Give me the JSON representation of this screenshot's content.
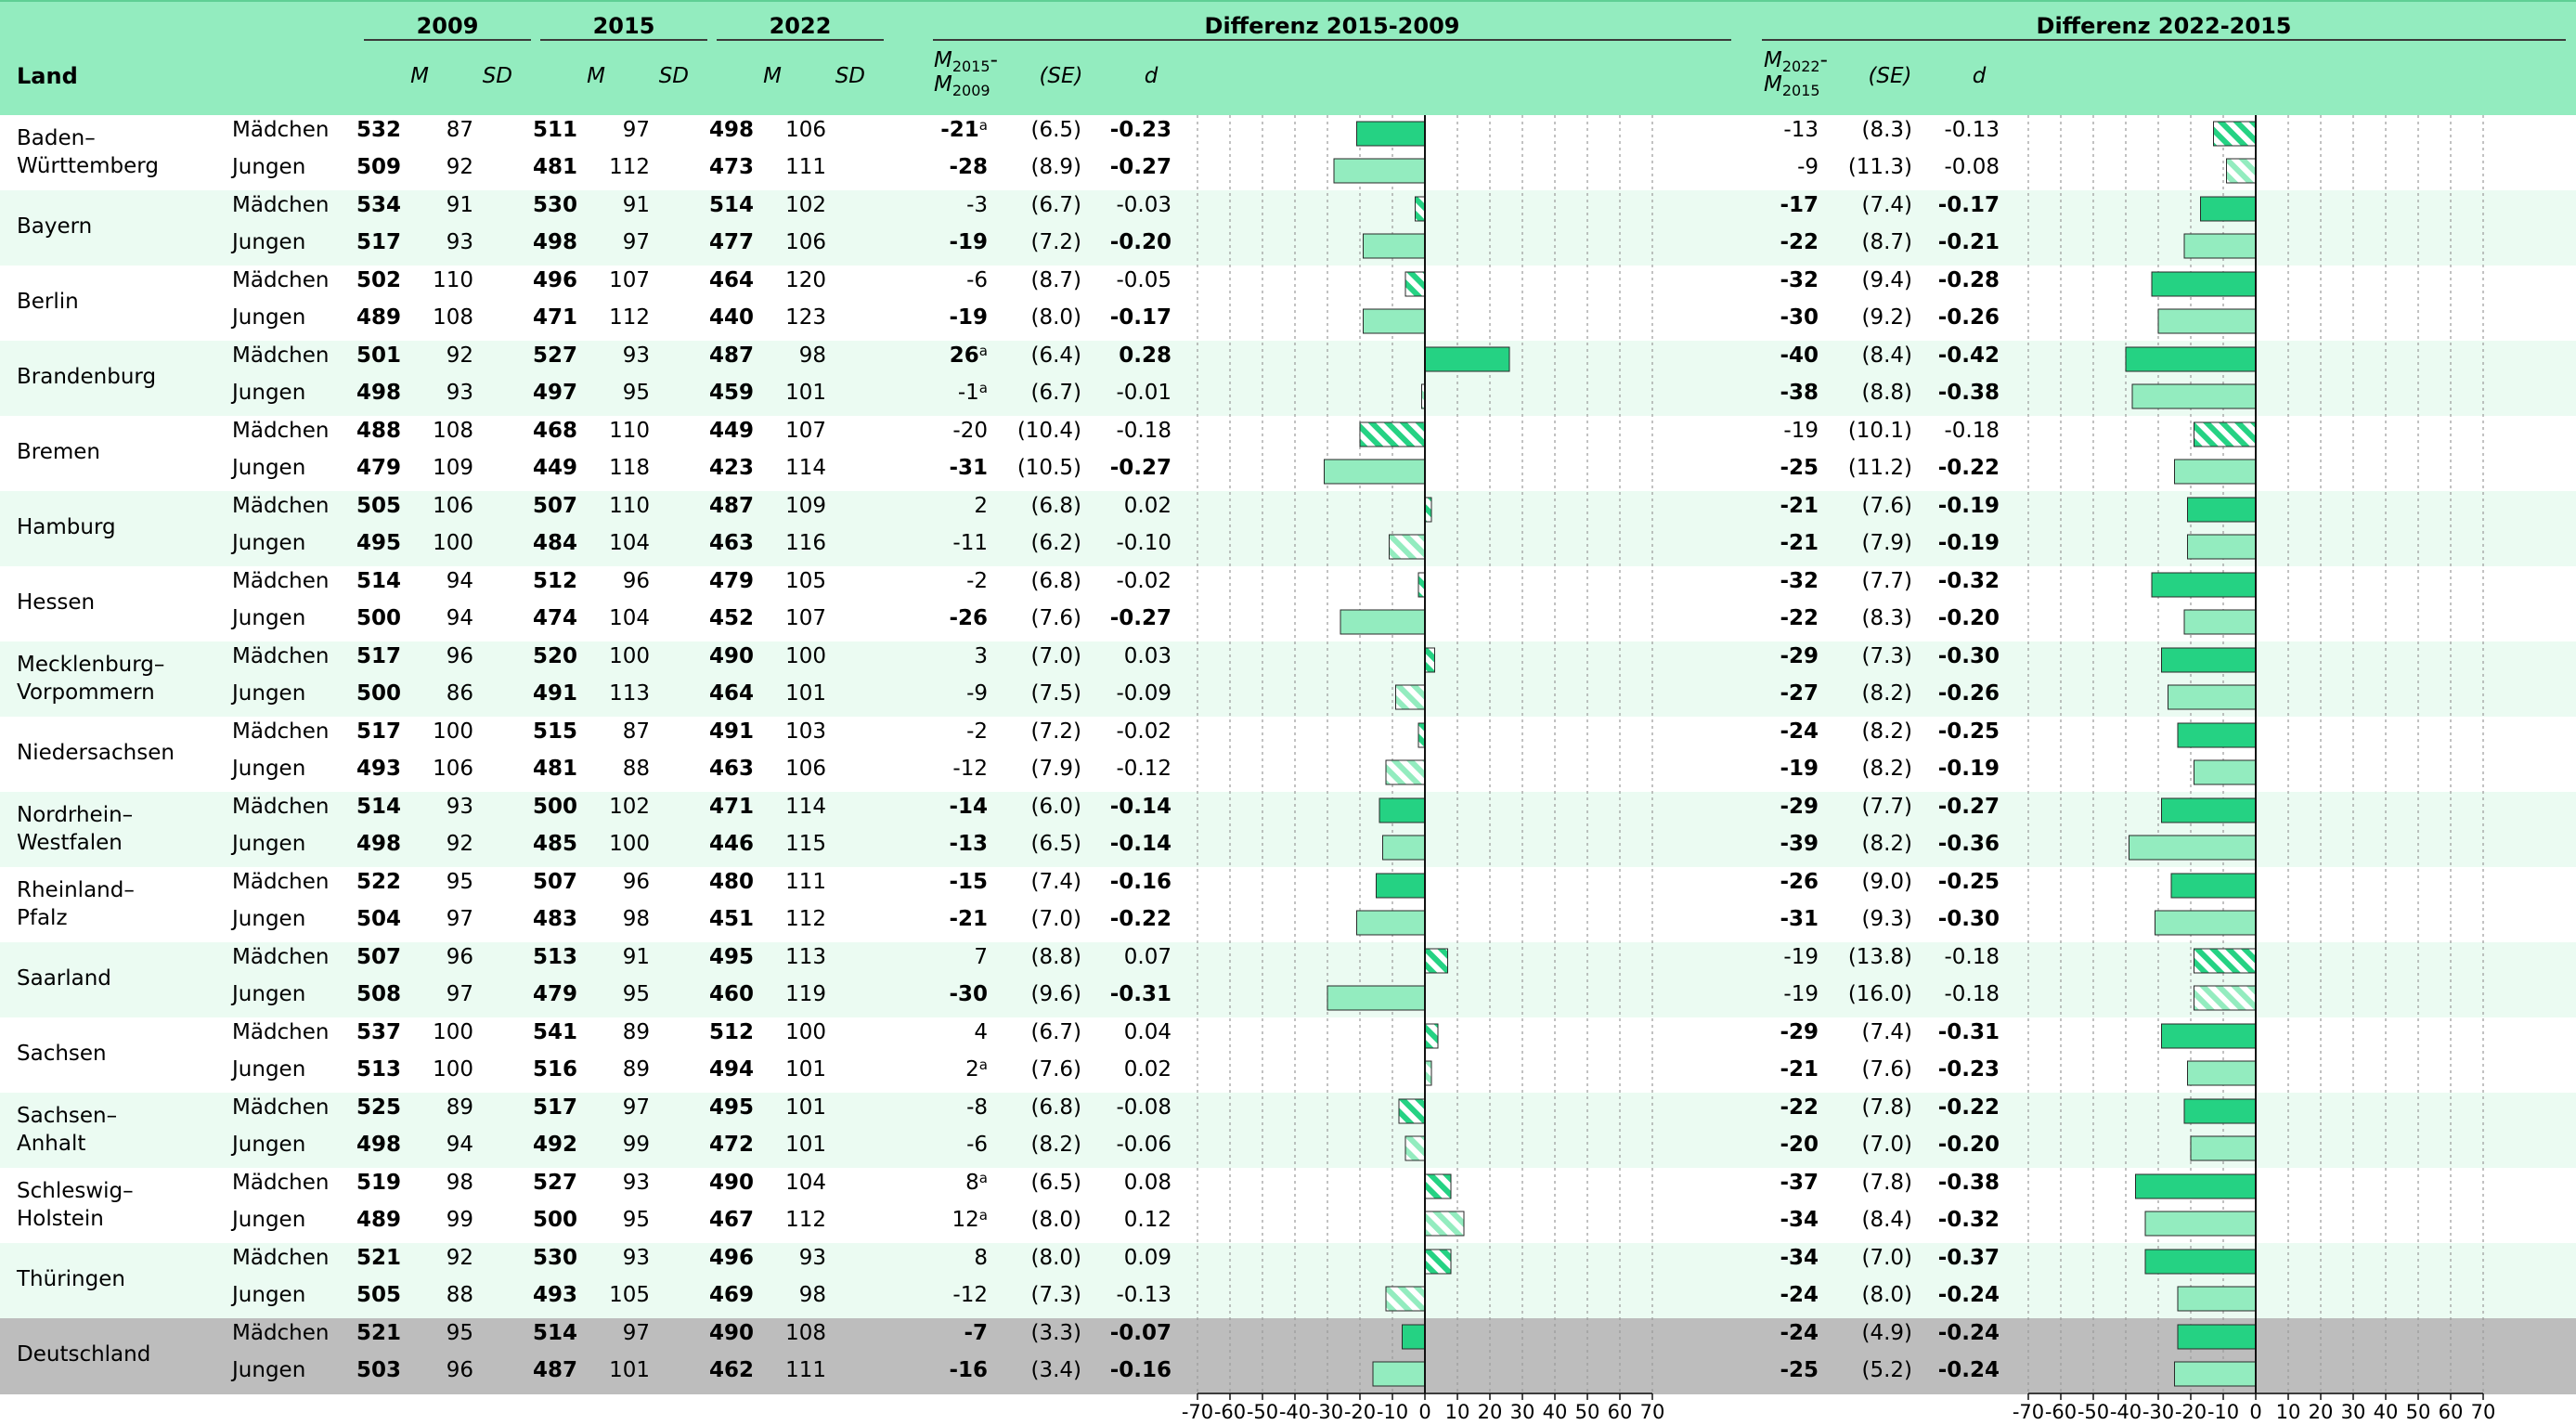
{
  "colors": {
    "header": "#93ecbf",
    "band": "#ebfbf2",
    "total": "#bdbdbd",
    "girls": "#25d283",
    "boys": "#93ecbf",
    "stroke": "#2a2a2a",
    "grid": "#9a9a9a"
  },
  "header": {
    "land": "Land",
    "years": [
      "2009",
      "2015",
      "2022"
    ],
    "m": "M",
    "sd": "SD",
    "diff1_title": "Differenz 2015-2009",
    "diff2_title": "Differenz 2022-2015",
    "diff1_m": {
      "top": "M",
      "sub1": "2015",
      "dash": "-",
      "bottom": "M",
      "sub2": "2009"
    },
    "diff2_m": {
      "top": "M",
      "sub1": "2022",
      "dash": "-",
      "bottom": "M",
      "sub2": "2015"
    },
    "se": "(SE)",
    "d": "d"
  },
  "rows": [
    {
      "land": [
        "Baden–",
        "Württemberg"
      ],
      "alt": false,
      "total": false,
      "g": [
        {
          "label": "Mädchen",
          "m09": "532",
          "sd09": "87",
          "m15": "511",
          "sd15": "97",
          "m22": "498",
          "sd22": "106",
          "d1": "-21",
          "d1a": "a",
          "se1": "(6.5)",
          "dd1": "-0.23",
          "s1": true,
          "d2": "-13",
          "d2a": "",
          "se2": "(8.3)",
          "dd2": "-0.13",
          "s2": false
        },
        {
          "label": "Jungen",
          "m09": "509",
          "sd09": "92",
          "m15": "481",
          "sd15": "112",
          "m22": "473",
          "sd22": "111",
          "d1": "-28",
          "d1a": "",
          "se1": "(8.9)",
          "dd1": "-0.27",
          "s1": true,
          "d2": "-9",
          "d2a": "",
          "se2": "(11.3)",
          "dd2": "-0.08",
          "s2": false
        }
      ]
    },
    {
      "land": [
        "Bayern"
      ],
      "alt": true,
      "total": false,
      "g": [
        {
          "label": "Mädchen",
          "m09": "534",
          "sd09": "91",
          "m15": "530",
          "sd15": "91",
          "m22": "514",
          "sd22": "102",
          "d1": "-3",
          "d1a": "",
          "se1": "(6.7)",
          "dd1": "-0.03",
          "s1": false,
          "d2": "-17",
          "d2a": "",
          "se2": "(7.4)",
          "dd2": "-0.17",
          "s2": true
        },
        {
          "label": "Jungen",
          "m09": "517",
          "sd09": "93",
          "m15": "498",
          "sd15": "97",
          "m22": "477",
          "sd22": "106",
          "d1": "-19",
          "d1a": "",
          "se1": "(7.2)",
          "dd1": "-0.20",
          "s1": true,
          "d2": "-22",
          "d2a": "",
          "se2": "(8.7)",
          "dd2": "-0.21",
          "s2": true
        }
      ]
    },
    {
      "land": [
        "Berlin"
      ],
      "alt": false,
      "total": false,
      "g": [
        {
          "label": "Mädchen",
          "m09": "502",
          "sd09": "110",
          "m15": "496",
          "sd15": "107",
          "m22": "464",
          "sd22": "120",
          "d1": "-6",
          "d1a": "",
          "se1": "(8.7)",
          "dd1": "-0.05",
          "s1": false,
          "d2": "-32",
          "d2a": "",
          "se2": "(9.4)",
          "dd2": "-0.28",
          "s2": true
        },
        {
          "label": "Jungen",
          "m09": "489",
          "sd09": "108",
          "m15": "471",
          "sd15": "112",
          "m22": "440",
          "sd22": "123",
          "d1": "-19",
          "d1a": "",
          "se1": "(8.0)",
          "dd1": "-0.17",
          "s1": true,
          "d2": "-30",
          "d2a": "",
          "se2": "(9.2)",
          "dd2": "-0.26",
          "s2": true
        }
      ]
    },
    {
      "land": [
        "Brandenburg"
      ],
      "alt": true,
      "total": false,
      "g": [
        {
          "label": "Mädchen",
          "m09": "501",
          "sd09": "92",
          "m15": "527",
          "sd15": "93",
          "m22": "487",
          "sd22": "98",
          "d1": "26",
          "d1a": "a",
          "se1": "(6.4)",
          "dd1": "0.28",
          "s1": true,
          "d2": "-40",
          "d2a": "",
          "se2": "(8.4)",
          "dd2": "-0.42",
          "s2": true
        },
        {
          "label": "Jungen",
          "m09": "498",
          "sd09": "93",
          "m15": "497",
          "sd15": "95",
          "m22": "459",
          "sd22": "101",
          "d1": "-1",
          "d1a": "a",
          "se1": "(6.7)",
          "dd1": "-0.01",
          "s1": false,
          "d2": "-38",
          "d2a": "",
          "se2": "(8.8)",
          "dd2": "-0.38",
          "s2": true
        }
      ]
    },
    {
      "land": [
        "Bremen"
      ],
      "alt": false,
      "total": false,
      "g": [
        {
          "label": "Mädchen",
          "m09": "488",
          "sd09": "108",
          "m15": "468",
          "sd15": "110",
          "m22": "449",
          "sd22": "107",
          "d1": "-20",
          "d1a": "",
          "se1": "(10.4)",
          "dd1": "-0.18",
          "s1": false,
          "d2": "-19",
          "d2a": "",
          "se2": "(10.1)",
          "dd2": "-0.18",
          "s2": false
        },
        {
          "label": "Jungen",
          "m09": "479",
          "sd09": "109",
          "m15": "449",
          "sd15": "118",
          "m22": "423",
          "sd22": "114",
          "d1": "-31",
          "d1a": "",
          "se1": "(10.5)",
          "dd1": "-0.27",
          "s1": true,
          "d2": "-25",
          "d2a": "",
          "se2": "(11.2)",
          "dd2": "-0.22",
          "s2": true
        }
      ]
    },
    {
      "land": [
        "Hamburg"
      ],
      "alt": true,
      "total": false,
      "g": [
        {
          "label": "Mädchen",
          "m09": "505",
          "sd09": "106",
          "m15": "507",
          "sd15": "110",
          "m22": "487",
          "sd22": "109",
          "d1": "2",
          "d1a": "",
          "se1": "(6.8)",
          "dd1": "0.02",
          "s1": false,
          "d2": "-21",
          "d2a": "",
          "se2": "(7.6)",
          "dd2": "-0.19",
          "s2": true
        },
        {
          "label": "Jungen",
          "m09": "495",
          "sd09": "100",
          "m15": "484",
          "sd15": "104",
          "m22": "463",
          "sd22": "116",
          "d1": "-11",
          "d1a": "",
          "se1": "(6.2)",
          "dd1": "-0.10",
          "s1": false,
          "d2": "-21",
          "d2a": "",
          "se2": "(7.9)",
          "dd2": "-0.19",
          "s2": true
        }
      ]
    },
    {
      "land": [
        "Hessen"
      ],
      "alt": false,
      "total": false,
      "g": [
        {
          "label": "Mädchen",
          "m09": "514",
          "sd09": "94",
          "m15": "512",
          "sd15": "96",
          "m22": "479",
          "sd22": "105",
          "d1": "-2",
          "d1a": "",
          "se1": "(6.8)",
          "dd1": "-0.02",
          "s1": false,
          "d2": "-32",
          "d2a": "",
          "se2": "(7.7)",
          "dd2": "-0.32",
          "s2": true
        },
        {
          "label": "Jungen",
          "m09": "500",
          "sd09": "94",
          "m15": "474",
          "sd15": "104",
          "m22": "452",
          "sd22": "107",
          "d1": "-26",
          "d1a": "",
          "se1": "(7.6)",
          "dd1": "-0.27",
          "s1": true,
          "d2": "-22",
          "d2a": "",
          "se2": "(8.3)",
          "dd2": "-0.20",
          "s2": true
        }
      ]
    },
    {
      "land": [
        "Mecklenburg–",
        "Vorpommern"
      ],
      "alt": true,
      "total": false,
      "g": [
        {
          "label": "Mädchen",
          "m09": "517",
          "sd09": "96",
          "m15": "520",
          "sd15": "100",
          "m22": "490",
          "sd22": "100",
          "d1": "3",
          "d1a": "",
          "se1": "(7.0)",
          "dd1": "0.03",
          "s1": false,
          "d2": "-29",
          "d2a": "",
          "se2": "(7.3)",
          "dd2": "-0.30",
          "s2": true
        },
        {
          "label": "Jungen",
          "m09": "500",
          "sd09": "86",
          "m15": "491",
          "sd15": "113",
          "m22": "464",
          "sd22": "101",
          "d1": "-9",
          "d1a": "",
          "se1": "(7.5)",
          "dd1": "-0.09",
          "s1": false,
          "d2": "-27",
          "d2a": "",
          "se2": "(8.2)",
          "dd2": "-0.26",
          "s2": true
        }
      ]
    },
    {
      "land": [
        "Niedersachsen"
      ],
      "alt": false,
      "total": false,
      "g": [
        {
          "label": "Mädchen",
          "m09": "517",
          "sd09": "100",
          "m15": "515",
          "sd15": "87",
          "m22": "491",
          "sd22": "103",
          "d1": "-2",
          "d1a": "",
          "se1": "(7.2)",
          "dd1": "-0.02",
          "s1": false,
          "d2": "-24",
          "d2a": "",
          "se2": "(8.2)",
          "dd2": "-0.25",
          "s2": true
        },
        {
          "label": "Jungen",
          "m09": "493",
          "sd09": "106",
          "m15": "481",
          "sd15": "88",
          "m22": "463",
          "sd22": "106",
          "d1": "-12",
          "d1a": "",
          "se1": "(7.9)",
          "dd1": "-0.12",
          "s1": false,
          "d2": "-19",
          "d2a": "",
          "se2": "(8.2)",
          "dd2": "-0.19",
          "s2": true
        }
      ]
    },
    {
      "land": [
        "Nordrhein–",
        "Westfalen"
      ],
      "alt": true,
      "total": false,
      "g": [
        {
          "label": "Mädchen",
          "m09": "514",
          "sd09": "93",
          "m15": "500",
          "sd15": "102",
          "m22": "471",
          "sd22": "114",
          "d1": "-14",
          "d1a": "",
          "se1": "(6.0)",
          "dd1": "-0.14",
          "s1": true,
          "d2": "-29",
          "d2a": "",
          "se2": "(7.7)",
          "dd2": "-0.27",
          "s2": true
        },
        {
          "label": "Jungen",
          "m09": "498",
          "sd09": "92",
          "m15": "485",
          "sd15": "100",
          "m22": "446",
          "sd22": "115",
          "d1": "-13",
          "d1a": "",
          "se1": "(6.5)",
          "dd1": "-0.14",
          "s1": true,
          "d2": "-39",
          "d2a": "",
          "se2": "(8.2)",
          "dd2": "-0.36",
          "s2": true
        }
      ]
    },
    {
      "land": [
        "Rheinland–",
        "Pfalz"
      ],
      "alt": false,
      "total": false,
      "g": [
        {
          "label": "Mädchen",
          "m09": "522",
          "sd09": "95",
          "m15": "507",
          "sd15": "96",
          "m22": "480",
          "sd22": "111",
          "d1": "-15",
          "d1a": "",
          "se1": "(7.4)",
          "dd1": "-0.16",
          "s1": true,
          "d2": "-26",
          "d2a": "",
          "se2": "(9.0)",
          "dd2": "-0.25",
          "s2": true
        },
        {
          "label": "Jungen",
          "m09": "504",
          "sd09": "97",
          "m15": "483",
          "sd15": "98",
          "m22": "451",
          "sd22": "112",
          "d1": "-21",
          "d1a": "",
          "se1": "(7.0)",
          "dd1": "-0.22",
          "s1": true,
          "d2": "-31",
          "d2a": "",
          "se2": "(9.3)",
          "dd2": "-0.30",
          "s2": true
        }
      ]
    },
    {
      "land": [
        "Saarland"
      ],
      "alt": true,
      "total": false,
      "g": [
        {
          "label": "Mädchen",
          "m09": "507",
          "sd09": "96",
          "m15": "513",
          "sd15": "91",
          "m22": "495",
          "sd22": "113",
          "d1": "7",
          "d1a": "",
          "se1": "(8.8)",
          "dd1": "0.07",
          "s1": false,
          "d2": "-19",
          "d2a": "",
          "se2": "(13.8)",
          "dd2": "-0.18",
          "s2": false
        },
        {
          "label": "Jungen",
          "m09": "508",
          "sd09": "97",
          "m15": "479",
          "sd15": "95",
          "m22": "460",
          "sd22": "119",
          "d1": "-30",
          "d1a": "",
          "se1": "(9.6)",
          "dd1": "-0.31",
          "s1": true,
          "d2": "-19",
          "d2a": "",
          "se2": "(16.0)",
          "dd2": "-0.18",
          "s2": false
        }
      ]
    },
    {
      "land": [
        "Sachsen"
      ],
      "alt": false,
      "total": false,
      "g": [
        {
          "label": "Mädchen",
          "m09": "537",
          "sd09": "100",
          "m15": "541",
          "sd15": "89",
          "m22": "512",
          "sd22": "100",
          "d1": "4",
          "d1a": "",
          "se1": "(6.7)",
          "dd1": "0.04",
          "s1": false,
          "d2": "-29",
          "d2a": "",
          "se2": "(7.4)",
          "dd2": "-0.31",
          "s2": true
        },
        {
          "label": "Jungen",
          "m09": "513",
          "sd09": "100",
          "m15": "516",
          "sd15": "89",
          "m22": "494",
          "sd22": "101",
          "d1": "2",
          "d1a": "a",
          "se1": "(7.6)",
          "dd1": "0.02",
          "s1": false,
          "d2": "-21",
          "d2a": "",
          "se2": "(7.6)",
          "dd2": "-0.23",
          "s2": true
        }
      ]
    },
    {
      "land": [
        "Sachsen–",
        "Anhalt"
      ],
      "alt": true,
      "total": false,
      "g": [
        {
          "label": "Mädchen",
          "m09": "525",
          "sd09": "89",
          "m15": "517",
          "sd15": "97",
          "m22": "495",
          "sd22": "101",
          "d1": "-8",
          "d1a": "",
          "se1": "(6.8)",
          "dd1": "-0.08",
          "s1": false,
          "d2": "-22",
          "d2a": "",
          "se2": "(7.8)",
          "dd2": "-0.22",
          "s2": true
        },
        {
          "label": "Jungen",
          "m09": "498",
          "sd09": "94",
          "m15": "492",
          "sd15": "99",
          "m22": "472",
          "sd22": "101",
          "d1": "-6",
          "d1a": "",
          "se1": "(8.2)",
          "dd1": "-0.06",
          "s1": false,
          "d2": "-20",
          "d2a": "",
          "se2": "(7.0)",
          "dd2": "-0.20",
          "s2": true
        }
      ]
    },
    {
      "land": [
        "Schleswig–",
        "Holstein"
      ],
      "alt": false,
      "total": false,
      "g": [
        {
          "label": "Mädchen",
          "m09": "519",
          "sd09": "98",
          "m15": "527",
          "sd15": "93",
          "m22": "490",
          "sd22": "104",
          "d1": "8",
          "d1a": "a",
          "se1": "(6.5)",
          "dd1": "0.08",
          "s1": false,
          "d2": "-37",
          "d2a": "",
          "se2": "(7.8)",
          "dd2": "-0.38",
          "s2": true
        },
        {
          "label": "Jungen",
          "m09": "489",
          "sd09": "99",
          "m15": "500",
          "sd15": "95",
          "m22": "467",
          "sd22": "112",
          "d1": "12",
          "d1a": "a",
          "se1": "(8.0)",
          "dd1": "0.12",
          "s1": false,
          "d2": "-34",
          "d2a": "",
          "se2": "(8.4)",
          "dd2": "-0.32",
          "s2": true
        }
      ]
    },
    {
      "land": [
        "Thüringen"
      ],
      "alt": true,
      "total": false,
      "g": [
        {
          "label": "Mädchen",
          "m09": "521",
          "sd09": "92",
          "m15": "530",
          "sd15": "93",
          "m22": "496",
          "sd22": "93",
          "d1": "8",
          "d1a": "",
          "se1": "(8.0)",
          "dd1": "0.09",
          "s1": false,
          "d2": "-34",
          "d2a": "",
          "se2": "(7.0)",
          "dd2": "-0.37",
          "s2": true
        },
        {
          "label": "Jungen",
          "m09": "505",
          "sd09": "88",
          "m15": "493",
          "sd15": "105",
          "m22": "469",
          "sd22": "98",
          "d1": "-12",
          "d1a": "",
          "se1": "(7.3)",
          "dd1": "-0.13",
          "s1": false,
          "d2": "-24",
          "d2a": "",
          "se2": "(8.0)",
          "dd2": "-0.24",
          "s2": true
        }
      ]
    },
    {
      "land": [
        "Deutschland"
      ],
      "alt": false,
      "total": true,
      "g": [
        {
          "label": "Mädchen",
          "m09": "521",
          "sd09": "95",
          "m15": "514",
          "sd15": "97",
          "m22": "490",
          "sd22": "108",
          "d1": "-7",
          "d1a": "",
          "se1": "(3.3)",
          "dd1": "-0.07",
          "s1": true,
          "d2": "-24",
          "d2a": "",
          "se2": "(4.9)",
          "dd2": "-0.24",
          "s2": true
        },
        {
          "label": "Jungen",
          "m09": "503",
          "sd09": "96",
          "m15": "487",
          "sd15": "101",
          "m22": "462",
          "sd22": "111",
          "d1": "-16",
          "d1a": "",
          "se1": "(3.4)",
          "dd1": "-0.16",
          "s1": true,
          "d2": "-25",
          "d2a": "",
          "se2": "(5.2)",
          "dd2": "-0.24",
          "s2": true
        }
      ]
    }
  ],
  "chart_data": [
    {
      "type": "bar",
      "title": "Differenz 2015-2009",
      "orientation": "horizontal",
      "xlim": [
        -70,
        70
      ],
      "ticks": [
        "-70",
        "-60",
        "-50",
        "-40",
        "-30",
        "-20",
        "-10",
        "0",
        "10",
        "20",
        "30",
        "40",
        "50",
        "60",
        "70"
      ],
      "grid": true,
      "series": [
        {
          "values": [
            -21,
            -28,
            -3,
            -19,
            -6,
            -19,
            26,
            -1,
            -20,
            -31,
            2,
            -11,
            -2,
            -26,
            3,
            -9,
            -2,
            -12,
            -14,
            -13,
            -15,
            -21,
            7,
            -30,
            4,
            2,
            -8,
            -6,
            8,
            12,
            8,
            -12,
            -7,
            -16
          ]
        }
      ]
    },
    {
      "type": "bar",
      "title": "Differenz 2022-2015",
      "orientation": "horizontal",
      "xlim": [
        -70,
        70
      ],
      "ticks": [
        "-70",
        "-60",
        "-50",
        "-40",
        "-30",
        "-20",
        "-10",
        "0",
        "10",
        "20",
        "30",
        "40",
        "50",
        "60",
        "70"
      ],
      "grid": true,
      "series": [
        {
          "values": [
            -13,
            -9,
            -17,
            -22,
            -32,
            -30,
            -40,
            -38,
            -19,
            -25,
            -21,
            -21,
            -32,
            -22,
            -29,
            -27,
            -24,
            -19,
            -29,
            -39,
            -26,
            -31,
            -19,
            -19,
            -29,
            -21,
            -22,
            -20,
            -37,
            -34,
            -34,
            -24,
            -24,
            -25
          ]
        }
      ]
    }
  ]
}
